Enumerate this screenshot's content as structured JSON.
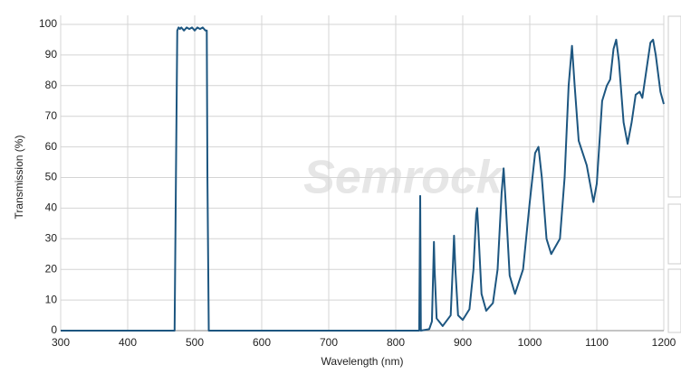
{
  "chart_data": {
    "type": "line",
    "x_label": "Wavelength (nm)",
    "y_label": "Transmission (%)",
    "watermark": "Semrock",
    "x": [
      300,
      470,
      472,
      474,
      476,
      478,
      480,
      484,
      488,
      492,
      496,
      500,
      504,
      508,
      512,
      516,
      518,
      519,
      521,
      835,
      836.5,
      837.5,
      850,
      854,
      856,
      857,
      858,
      861,
      870,
      882,
      885,
      887,
      889,
      893,
      900,
      910,
      916,
      920,
      921.5,
      923,
      928,
      935,
      945,
      952,
      958,
      961,
      964,
      970,
      978,
      990,
      1000,
      1008,
      1013,
      1018,
      1025,
      1032,
      1045,
      1052,
      1058,
      1063,
      1067,
      1073,
      1085,
      1095,
      1100,
      1108,
      1115,
      1120,
      1125,
      1129,
      1133,
      1140,
      1146,
      1152,
      1158,
      1164,
      1168,
      1174,
      1180,
      1184,
      1188,
      1195,
      1200
    ],
    "series": [
      {
        "name": "Transmission",
        "color": "#1d5680",
        "values": [
          0,
          0,
          50,
          98,
          99,
          98.5,
          99,
          98,
          99,
          98.5,
          99,
          98,
          99,
          98.5,
          99,
          98,
          98,
          50,
          0,
          0,
          44,
          0,
          0.5,
          3,
          20,
          29,
          20,
          4,
          1.5,
          5,
          20,
          31,
          20,
          5,
          3.5,
          7,
          20,
          38,
          40,
          34,
          12,
          6.5,
          9,
          20,
          45,
          53,
          42,
          18,
          12,
          20,
          42,
          58,
          60,
          50,
          30,
          25,
          30,
          50,
          80,
          93,
          80,
          62,
          54,
          42,
          48,
          75,
          80,
          82,
          92,
          95,
          88,
          68,
          61,
          68,
          77,
          78,
          76,
          85,
          94,
          95,
          90,
          78,
          74
        ]
      }
    ],
    "xlim": [
      300,
      1200
    ],
    "ylim": [
      0,
      100
    ],
    "xticks": [
      300,
      400,
      500,
      600,
      700,
      800,
      900,
      1000,
      1100,
      1200
    ],
    "yticks": [
      0,
      10,
      20,
      30,
      40,
      50,
      60,
      70,
      80,
      90,
      100
    ],
    "grid": true
  }
}
